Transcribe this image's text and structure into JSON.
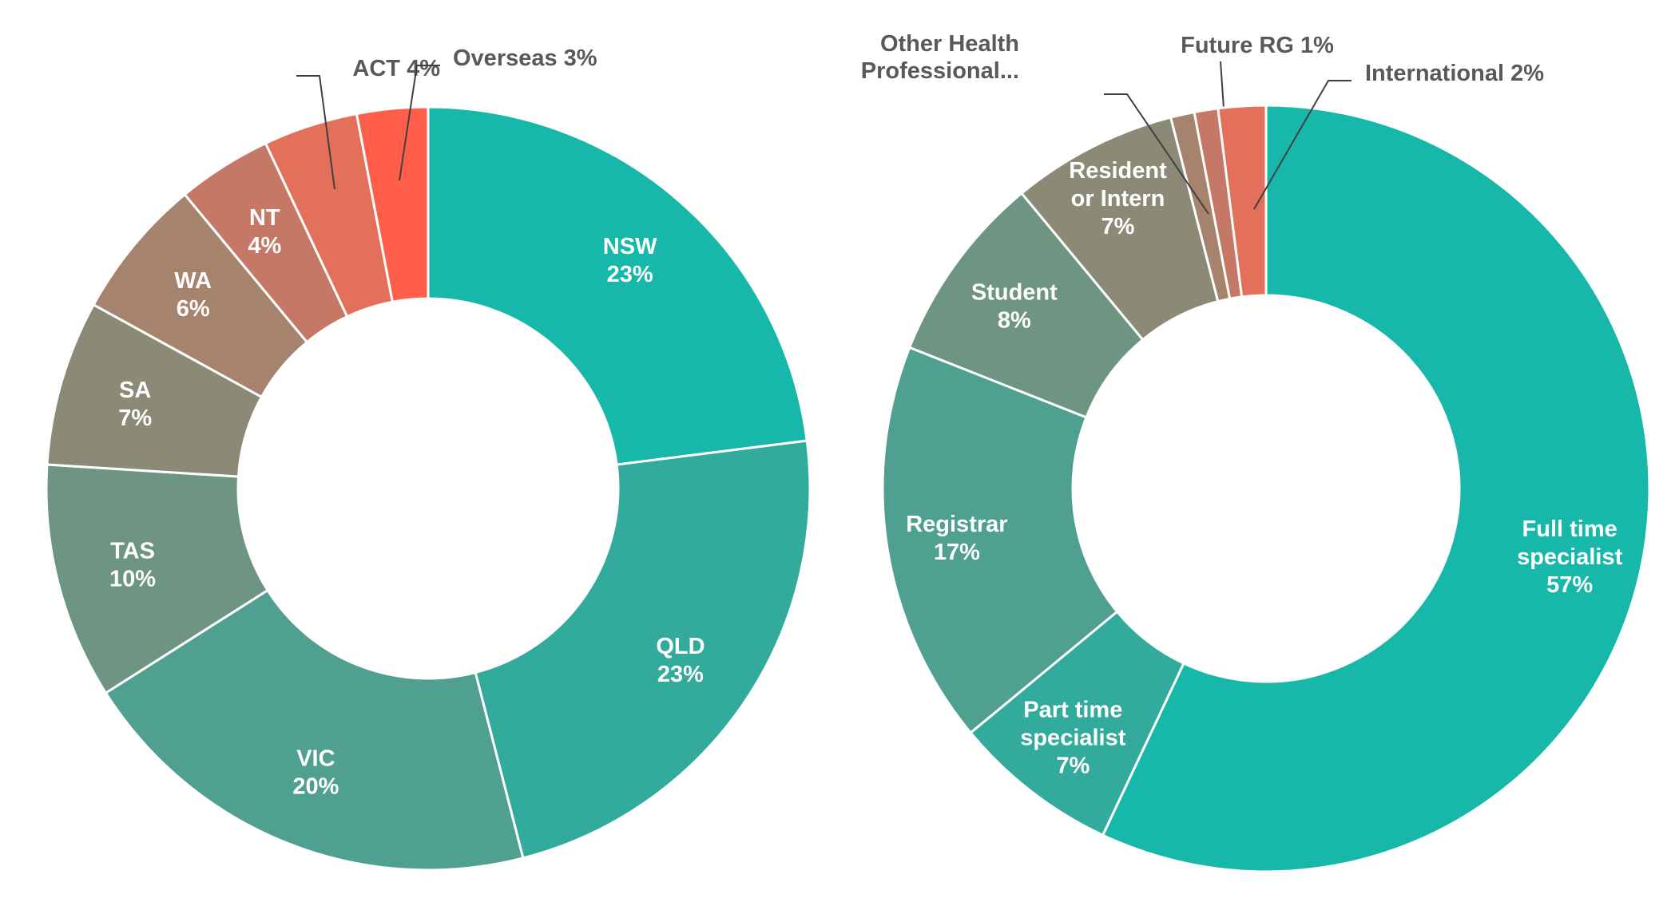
{
  "chart_data": [
    {
      "type": "donut",
      "title": "",
      "slices": [
        {
          "label": "NSW",
          "pct_label": "23%",
          "value": 23,
          "color": "#17b8a9"
        },
        {
          "label": "QLD",
          "pct_label": "23%",
          "value": 23,
          "color": "#33ab9c"
        },
        {
          "label": "VIC",
          "pct_label": "20%",
          "value": 20,
          "color": "#4fa090"
        },
        {
          "label": "TAS",
          "pct_label": "10%",
          "value": 10,
          "color": "#6d9582"
        },
        {
          "label": "SA",
          "pct_label": "7%",
          "value": 7,
          "color": "#8b8a76"
        },
        {
          "label": "WA",
          "pct_label": "6%",
          "value": 6,
          "color": "#a6836d"
        },
        {
          "label": "NT",
          "pct_label": "4%",
          "value": 4,
          "color": "#c57865"
        },
        {
          "label": "ACT",
          "pct_label": "4%",
          "value": 4,
          "color": "#e2705a"
        },
        {
          "label": "Overseas",
          "pct_label": "3%",
          "value": 3,
          "color": "#ff5e4b"
        }
      ]
    },
    {
      "type": "donut",
      "title": "",
      "slices": [
        {
          "label": "Full time specialist",
          "pct_label": "57%",
          "value": 57,
          "color": "#17b8a9"
        },
        {
          "label": "Part time specialist",
          "pct_label": "7%",
          "value": 7,
          "color": "#33ab9c"
        },
        {
          "label": "Registrar",
          "pct_label": "17%",
          "value": 17,
          "color": "#4fa090"
        },
        {
          "label": "Student",
          "pct_label": "8%",
          "value": 8,
          "color": "#6d9582"
        },
        {
          "label": "Resident or Intern",
          "pct_label": "7%",
          "value": 7,
          "color": "#8b8a76"
        },
        {
          "label": "Other Health Professional...",
          "pct_label": "",
          "value": 1,
          "color": "#a6836d"
        },
        {
          "label": "Future RG",
          "pct_label": "1%",
          "value": 1,
          "color": "#c57865"
        },
        {
          "label": "International",
          "pct_label": "2%",
          "value": 2,
          "color": "#e2705a"
        }
      ]
    }
  ]
}
